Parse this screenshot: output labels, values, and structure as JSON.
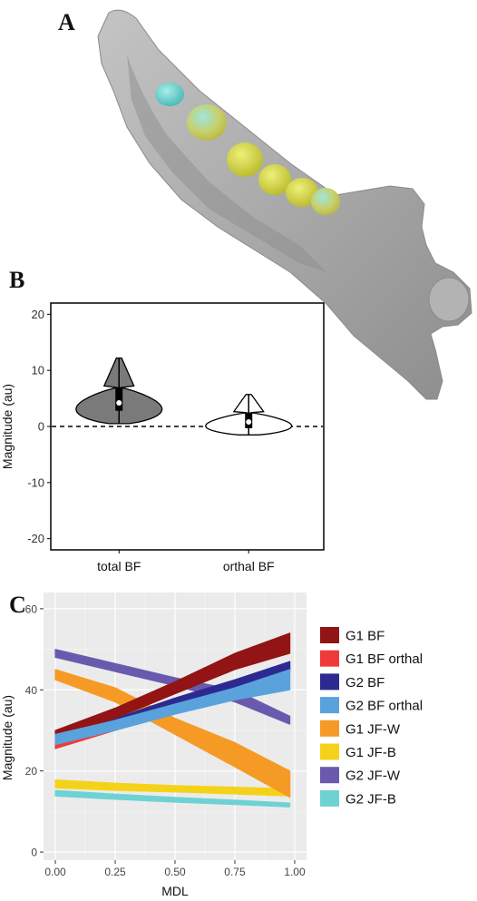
{
  "panels": {
    "a": "A",
    "b": "B",
    "c": "C"
  },
  "colors": {
    "bone": "#a9a9a9",
    "violin_total": "#7a7a7a",
    "panel_bg": "#ebebeb",
    "G1_BF": "#921414",
    "G1_BF_orthal": "#f03a3a",
    "G2_BF": "#2c2a92",
    "G2_BF_orthal": "#5aa2dc",
    "G1_JF_W": "#f59a24",
    "G1_JF_B": "#f5d21a",
    "G2_JF_W": "#6a5aae",
    "G2_JF_B": "#6ed2d2"
  },
  "chart_data": [
    {
      "id": "B",
      "type": "violin",
      "title": "",
      "xlabel": "",
      "ylabel": "Magnitude (au)",
      "categories": [
        "total BF",
        "orthal BF"
      ],
      "ylim": [
        -22,
        22
      ],
      "yticks": [
        "20",
        "10",
        "0",
        "-10",
        "-20"
      ],
      "reference_line": 0,
      "series": [
        {
          "category": "total BF",
          "min": 0.5,
          "max": 12.2,
          "q1": 2.8,
          "median": 4.2,
          "q3": 7.0,
          "whisker_low": 0.5,
          "whisker_high": 12.2
        },
        {
          "category": "orthal BF",
          "min": -1.5,
          "max": 5.7,
          "q1": -0.3,
          "median": 0.8,
          "q3": 2.5,
          "whisker_low": -1.5,
          "whisker_high": 5.7
        }
      ]
    },
    {
      "id": "C",
      "type": "line",
      "title": "",
      "xlabel": "MDL",
      "ylabel": "Magnitude (au)",
      "xlim": [
        0,
        1
      ],
      "ylim": [
        -2,
        64
      ],
      "xticks": [
        "0.00",
        "0.25",
        "0.50",
        "0.75",
        "1.00"
      ],
      "yticks": [
        "60",
        "40",
        "20",
        "0"
      ],
      "grid": true,
      "legend": "right",
      "series": [
        {
          "name": "G1 BF",
          "x": [
            0,
            0.25,
            0.5,
            0.75,
            0.98
          ],
          "y_low": [
            28,
            33,
            39,
            45,
            49
          ],
          "y_high": [
            30,
            35.5,
            42,
            49,
            54
          ]
        },
        {
          "name": "G1 BF orthal",
          "x": [
            0,
            0.25,
            0.5,
            0.75,
            0.98
          ],
          "y_low": [
            25.5,
            30,
            35,
            40,
            44
          ],
          "y_high": [
            27,
            32,
            37,
            42.5,
            46
          ]
        },
        {
          "name": "G2 BF",
          "x": [
            0,
            0.25,
            0.5,
            0.75,
            0.98
          ],
          "y_low": [
            27,
            31.5,
            36,
            40.5,
            45
          ],
          "y_high": [
            28.5,
            33,
            38,
            42.5,
            47
          ]
        },
        {
          "name": "G2 BF orthal",
          "x": [
            0,
            0.25,
            0.5,
            0.75,
            0.98
          ],
          "y_low": [
            26.5,
            30,
            34,
            37.5,
            40
          ],
          "y_high": [
            29,
            32.5,
            36.5,
            40.5,
            45
          ]
        },
        {
          "name": "G1 JF-W",
          "x": [
            0,
            0.25,
            0.5,
            0.75,
            0.98
          ],
          "y_low": [
            42.5,
            37,
            29,
            21,
            13.5
          ],
          "y_high": [
            45,
            40.5,
            33,
            27,
            20
          ]
        },
        {
          "name": "G1 JF-B",
          "x": [
            0,
            0.25,
            0.5,
            0.75,
            0.98
          ],
          "y_low": [
            15.8,
            15.2,
            14.8,
            14.3,
            13.8
          ],
          "y_high": [
            17.8,
            17,
            16.4,
            16,
            15.6
          ]
        },
        {
          "name": "G2 JF-W",
          "x": [
            0,
            0.25,
            0.5,
            0.75,
            0.98
          ],
          "y_low": [
            48,
            44.5,
            41,
            37,
            31.5
          ],
          "y_high": [
            50,
            46.5,
            43,
            40,
            33.5
          ]
        },
        {
          "name": "G2 JF-B",
          "x": [
            0,
            0.25,
            0.5,
            0.75,
            0.98
          ],
          "y_low": [
            13.8,
            13,
            12.3,
            11.7,
            11.1
          ],
          "y_high": [
            15.2,
            14.3,
            13.5,
            12.8,
            12.1
          ]
        }
      ]
    }
  ]
}
